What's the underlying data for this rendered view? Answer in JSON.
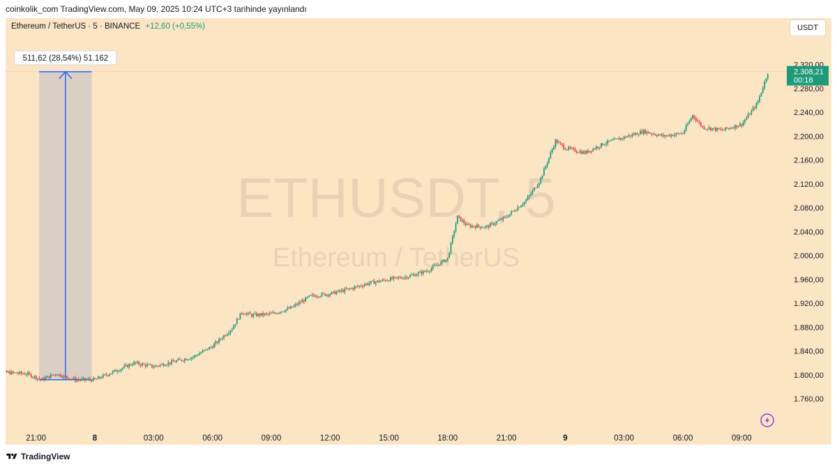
{
  "header": {
    "caption": "coinkolik_com TradingView.com, May 09, 2025 10:24 UTC+3 tarihinde yayınlandı"
  },
  "symbol": {
    "title": "Ethereum / TetherUS · 5 · BINANCE",
    "change": "+12,60 (+0,55%)",
    "currency": "USDT"
  },
  "watermark": {
    "ticker": "ETHUSDT, 5",
    "name": "Ethereum / TetherUS"
  },
  "price_tag": {
    "price": "2.308,21",
    "countdown": "00:18"
  },
  "measure": {
    "label": "511,62 (28,54%) 51.162"
  },
  "colors": {
    "background": "#fbe5c4",
    "up": "#22997a",
    "down": "#e8453c",
    "measure": "#2962ff",
    "price_tag": "#1e9a78"
  },
  "footer": {
    "brand": "TradingView"
  },
  "chart_data": {
    "type": "candlestick",
    "x_ticks": [
      "21:00",
      "8",
      "03:00",
      "06:00",
      "09:00",
      "12:00",
      "15:00",
      "18:00",
      "21:00",
      "9",
      "03:00",
      "06:00",
      "09:00"
    ],
    "y_ticks": [
      "2.320,00",
      "2.280,00",
      "2.240,00",
      "2.200,00",
      "2.160,00",
      "2.120,00",
      "2.080,00",
      "2.040,00",
      "2.000,00",
      "1.960,00",
      "1.920,00",
      "1.880,00",
      "1.840,00",
      "1.800,00",
      "1.760,00"
    ],
    "y_values": [
      2320,
      2280,
      2240,
      2200,
      2160,
      2120,
      2080,
      2040,
      2000,
      1960,
      1920,
      1880,
      1840,
      1800,
      1760
    ],
    "ylim": [
      1738,
      2344
    ],
    "last_price": 2308.21,
    "path_hours": [
      -5.5,
      -3.5,
      -2.7,
      -2,
      -1,
      0,
      1,
      2,
      3,
      4,
      5,
      6,
      7,
      7.5,
      8,
      9,
      10,
      11,
      12,
      13,
      14,
      15,
      16,
      17,
      18,
      18.5,
      19,
      20,
      21,
      22,
      22.7,
      23,
      23.5,
      24,
      25,
      26,
      27,
      28,
      29,
      30,
      30.5,
      31,
      32,
      33,
      33.8,
      34.35
    ],
    "path_prices": [
      1806,
      1802,
      1792,
      1802,
      1792,
      1792,
      1806,
      1820,
      1814,
      1822,
      1830,
      1848,
      1878,
      1905,
      1900,
      1902,
      1912,
      1932,
      1936,
      1944,
      1954,
      1960,
      1965,
      1975,
      1995,
      2065,
      2050,
      2048,
      2065,
      2092,
      2125,
      2150,
      2192,
      2180,
      2172,
      2188,
      2198,
      2208,
      2200,
      2205,
      2235,
      2215,
      2210,
      2220,
      2255,
      2308
    ],
    "measure_tool": {
      "from_hour": -2.7,
      "to_hour": -0.3,
      "from_price": 1792,
      "to_price": 2308,
      "text": "511,62 (28,54%) 51.162"
    }
  }
}
